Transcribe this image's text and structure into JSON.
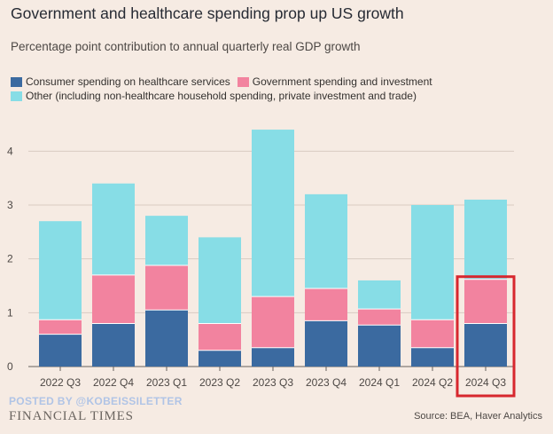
{
  "header": {
    "title": "Government and healthcare spending prop up US growth",
    "subtitle": "Percentage point contribution to annual quarterly real GDP growth"
  },
  "footer": {
    "watermark": "POSTED BY @KOBEISSILETTER",
    "brand": "FINANCIAL TIMES",
    "source": "Source: BEA, Haver Analytics"
  },
  "colors": {
    "healthcare": "#3b6aa0",
    "government": "#f2839f",
    "other": "#87dde6",
    "highlight": "#d7272e",
    "grid": "#d9cbc2"
  },
  "chart_data": {
    "type": "bar",
    "stacked": true,
    "title": "Government and healthcare spending prop up US growth",
    "subtitle": "Percentage point contribution to annual quarterly real GDP growth",
    "categories": [
      "2022 Q3",
      "2022 Q4",
      "2023 Q1",
      "2023 Q2",
      "2023 Q3",
      "2023 Q4",
      "2024 Q1",
      "2024 Q2",
      "2024 Q3"
    ],
    "series": [
      {
        "name": "Consumer spending on healthcare services",
        "values": [
          0.6,
          0.8,
          1.05,
          0.3,
          0.35,
          0.85,
          0.77,
          0.35,
          0.8
        ]
      },
      {
        "name": "Government spending and investment",
        "values": [
          0.27,
          0.9,
          0.83,
          0.5,
          0.95,
          0.6,
          0.3,
          0.52,
          0.82
        ]
      },
      {
        "name": "Other (including non-healthcare household spending, private investment and trade)",
        "values": [
          1.83,
          1.7,
          0.92,
          1.6,
          3.1,
          1.75,
          0.53,
          2.13,
          1.48
        ]
      }
    ],
    "ylim": [
      0,
      4.5
    ],
    "yticks": [
      "0",
      "1",
      "2",
      "3",
      "4"
    ],
    "grid": true,
    "legend": "top-left",
    "highlighted_category": "2024 Q3"
  }
}
